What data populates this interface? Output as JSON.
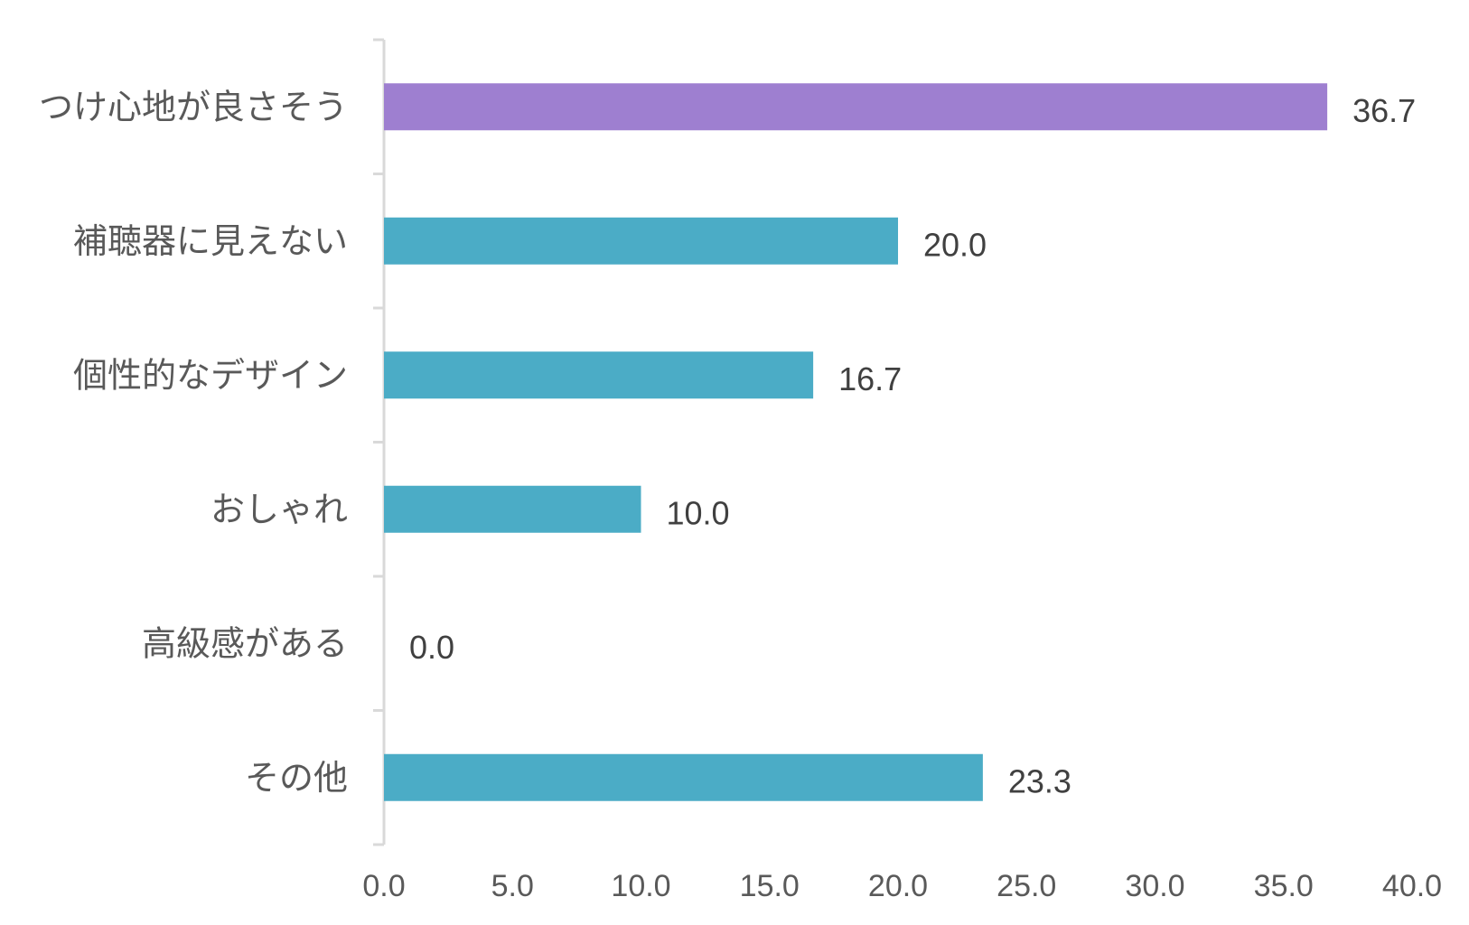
{
  "chart_data": {
    "type": "bar",
    "orientation": "horizontal",
    "categories": [
      "つけ心地が良さそう",
      "補聴器に見えない",
      "個性的なデザイン",
      "おしゃれ",
      "高級感がある",
      "その他"
    ],
    "values": [
      36.7,
      20.0,
      16.7,
      10.0,
      0.0,
      23.3
    ],
    "value_labels": [
      "36.7",
      "20.0",
      "16.7",
      "10.0",
      "0.0",
      "23.3"
    ],
    "x_ticks": [
      "0.0",
      "5.0",
      "10.0",
      "15.0",
      "20.0",
      "25.0",
      "30.0",
      "35.0",
      "40.0"
    ],
    "xlim": [
      0,
      40
    ],
    "grid": false,
    "legend": "none",
    "colors": {
      "highlight": "#9e7fd0",
      "default": "#4bacc6",
      "axis": "#d9d9d9"
    },
    "highlight_index": 0
  }
}
